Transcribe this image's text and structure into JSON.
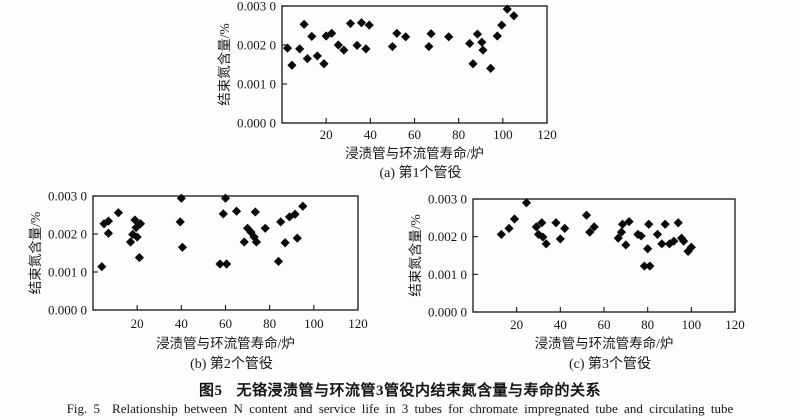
{
  "figure": {
    "caption_zh_label": "图5",
    "caption_zh_text": "无铬浸渍管与环流管3管役内结束氮含量与寿命的关系",
    "caption_en_label": "Fig. 5",
    "caption_en_text": "Relationship between N content and service life in 3 tubes for chromate impregnated tube and circulating tube"
  },
  "chart_data": [
    {
      "id": "a",
      "type": "scatter",
      "subtitle": "(a) 第1个管役",
      "xlabel": "浸渍管与环流管寿命/炉",
      "ylabel": "结束氮含量/%",
      "xlim": [
        0,
        120
      ],
      "ylim": [
        0.0,
        0.003
      ],
      "xticks": [
        20,
        40,
        60,
        80,
        100,
        120
      ],
      "yticks": [
        0.0,
        0.001,
        0.002,
        0.003
      ],
      "ytick_labels": [
        "0.000 0",
        "0.001 0",
        "0.002 0",
        "0.003 0"
      ],
      "grid": false,
      "legend": null,
      "marker": "diamond",
      "marker_color": "#0a0a0a",
      "points": [
        [
          2.5,
          0.00192
        ],
        [
          4.5,
          0.00148
        ],
        [
          8,
          0.0019
        ],
        [
          10,
          0.00253
        ],
        [
          11.5,
          0.00165
        ],
        [
          13.5,
          0.00222
        ],
        [
          16,
          0.00172
        ],
        [
          19,
          0.00152
        ],
        [
          20,
          0.00223
        ],
        [
          22.5,
          0.0023
        ],
        [
          25.5,
          0.002
        ],
        [
          28,
          0.00187
        ],
        [
          31,
          0.00255
        ],
        [
          34,
          0.00199
        ],
        [
          36,
          0.00257
        ],
        [
          38,
          0.0019
        ],
        [
          39.5,
          0.00251
        ],
        [
          50,
          0.00196
        ],
        [
          52,
          0.0023
        ],
        [
          56,
          0.00221
        ],
        [
          66.5,
          0.00196
        ],
        [
          67.5,
          0.00229
        ],
        [
          75.5,
          0.00221
        ],
        [
          85,
          0.00204
        ],
        [
          86.5,
          0.00152
        ],
        [
          88.5,
          0.00228
        ],
        [
          90.5,
          0.00207
        ],
        [
          91,
          0.00187
        ],
        [
          94.5,
          0.0014
        ],
        [
          97.5,
          0.00223
        ],
        [
          99.5,
          0.00251
        ],
        [
          102,
          0.00292
        ],
        [
          105,
          0.00275
        ]
      ]
    },
    {
      "id": "b",
      "type": "scatter",
      "subtitle": "(b) 第2个管役",
      "xlabel": "浸渍管与环流管寿命/炉",
      "ylabel": "结束氮含量/%",
      "xlim": [
        0,
        120
      ],
      "ylim": [
        0.0,
        0.003
      ],
      "xticks": [
        20,
        40,
        60,
        80,
        100,
        120
      ],
      "yticks": [
        0.0,
        0.001,
        0.002,
        0.003
      ],
      "ytick_labels": [
        "0.000 0",
        "0.001 0",
        "0.002 0",
        "0.003 0"
      ],
      "grid": false,
      "legend": null,
      "marker": "diamond",
      "marker_color": "#0a0a0a",
      "points": [
        [
          4,
          0.00114
        ],
        [
          5,
          0.00227
        ],
        [
          7,
          0.00234
        ],
        [
          7,
          0.00202
        ],
        [
          11.5,
          0.00256
        ],
        [
          17,
          0.00179
        ],
        [
          18,
          0.00199
        ],
        [
          19,
          0.00237
        ],
        [
          19.5,
          0.00217
        ],
        [
          20,
          0.00192
        ],
        [
          21.5,
          0.00227
        ],
        [
          21,
          0.00138
        ],
        [
          39.5,
          0.00232
        ],
        [
          40,
          0.00294
        ],
        [
          40.5,
          0.00165
        ],
        [
          57.5,
          0.00121
        ],
        [
          59,
          0.00253
        ],
        [
          60,
          0.00294
        ],
        [
          60.5,
          0.00121
        ],
        [
          65,
          0.0026
        ],
        [
          68.5,
          0.00179
        ],
        [
          70,
          0.00215
        ],
        [
          71.5,
          0.00205
        ],
        [
          73,
          0.00192
        ],
        [
          73.5,
          0.00258
        ],
        [
          74,
          0.00179
        ],
        [
          78,
          0.00215
        ],
        [
          84,
          0.00128
        ],
        [
          85,
          0.00232
        ],
        [
          87,
          0.00177
        ],
        [
          89,
          0.00245
        ],
        [
          91.5,
          0.00252
        ],
        [
          92.5,
          0.00189
        ],
        [
          95,
          0.00273
        ]
      ]
    },
    {
      "id": "c",
      "type": "scatter",
      "subtitle": "(c) 第3个管役",
      "xlabel": "浸渍管与环流管寿命/炉",
      "ylabel": "结束氮含量/%",
      "xlim": [
        0,
        120
      ],
      "ylim": [
        0.0,
        0.003
      ],
      "xticks": [
        20,
        40,
        60,
        80,
        100,
        120
      ],
      "yticks": [
        0.0,
        0.001,
        0.002,
        0.003
      ],
      "ytick_labels": [
        "0.000 0",
        "0.001 0",
        "0.002 0",
        "0.003 0"
      ],
      "grid": false,
      "legend": null,
      "marker": "diamond",
      "marker_color": "#0a0a0a",
      "points": [
        [
          13,
          0.00206
        ],
        [
          16.5,
          0.00222
        ],
        [
          19,
          0.00247
        ],
        [
          24.5,
          0.0029
        ],
        [
          29,
          0.00226
        ],
        [
          30,
          0.00206
        ],
        [
          31.5,
          0.00237
        ],
        [
          32,
          0.00199
        ],
        [
          33.5,
          0.00181
        ],
        [
          38,
          0.00237
        ],
        [
          40,
          0.00194
        ],
        [
          42,
          0.00222
        ],
        [
          52,
          0.00257
        ],
        [
          53.5,
          0.00212
        ],
        [
          55.5,
          0.00226
        ],
        [
          66.5,
          0.00196
        ],
        [
          68,
          0.00212
        ],
        [
          68.5,
          0.00233
        ],
        [
          70,
          0.00178
        ],
        [
          71.5,
          0.0024
        ],
        [
          75.5,
          0.00206
        ],
        [
          77,
          0.00202
        ],
        [
          78.5,
          0.00122
        ],
        [
          80,
          0.00168
        ],
        [
          81,
          0.00122
        ],
        [
          80.5,
          0.00233
        ],
        [
          84.5,
          0.00206
        ],
        [
          86.5,
          0.00181
        ],
        [
          88,
          0.00233
        ],
        [
          90,
          0.00181
        ],
        [
          92,
          0.00188
        ],
        [
          94,
          0.00237
        ],
        [
          95.5,
          0.00196
        ],
        [
          96.5,
          0.00188
        ],
        [
          98.5,
          0.00161
        ],
        [
          100,
          0.00172
        ]
      ]
    }
  ]
}
